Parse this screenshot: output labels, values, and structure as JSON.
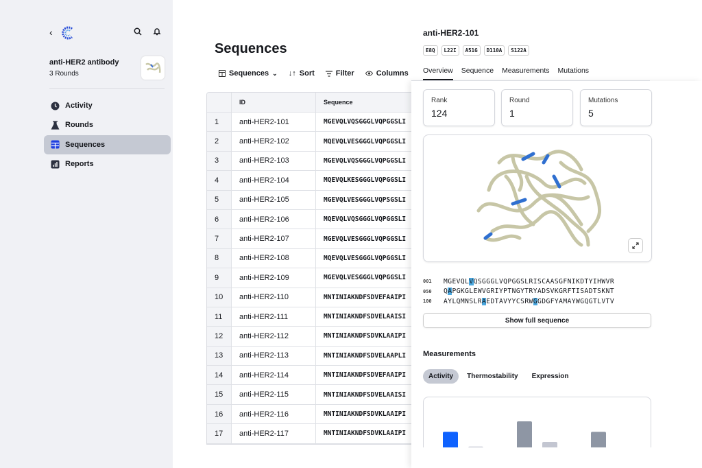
{
  "sidebar": {
    "project_title": "anti-HER2 antibody",
    "project_subtitle": "3 Rounds",
    "items": [
      {
        "label": "Activity",
        "icon": "clock-icon"
      },
      {
        "label": "Rounds",
        "icon": "flask-icon"
      },
      {
        "label": "Sequences",
        "icon": "table-icon",
        "active": true
      },
      {
        "label": "Reports",
        "icon": "bar-chart-icon"
      }
    ]
  },
  "main": {
    "title": "Sequences",
    "toolbar": {
      "view": "Sequences",
      "sort": "Sort",
      "filter": "Filter",
      "columns": "Columns"
    },
    "table": {
      "headers": [
        "",
        "ID",
        "Sequence"
      ],
      "rows": [
        [
          "1",
          "anti-HER2-101",
          "MGEVQLVQSGGGLVQPGGSLI"
        ],
        [
          "2",
          "anti-HER2-102",
          "MQEVQLVESGGGLVQPGGSLI"
        ],
        [
          "3",
          "anti-HER2-103",
          "MGEVQLVQSGGGLVQPGGSLI"
        ],
        [
          "4",
          "anti-HER2-104",
          "MQEVQLKESGGGLVQPGGSLI"
        ],
        [
          "5",
          "anti-HER2-105",
          "MGEVQLVESGGGLVQPSGSLI"
        ],
        [
          "6",
          "anti-HER2-106",
          "MQEVQLVQSGGGLVQPGGSLI"
        ],
        [
          "7",
          "anti-HER2-107",
          "MGEVQLVESGGGLVQPGGSLI"
        ],
        [
          "8",
          "anti-HER2-108",
          "MQEVQLVESGGGLVQPGGSLI"
        ],
        [
          "9",
          "anti-HER2-109",
          "MGEVQLVESGGGLVQPGGSLI"
        ],
        [
          "10",
          "anti-HER2-110",
          "MNTINIAKNDFSDVEFAAIPI"
        ],
        [
          "11",
          "anti-HER2-111",
          "MNTINIAKNDFSDVELAAISI"
        ],
        [
          "12",
          "anti-HER2-112",
          "MNTINIAKNDFSDVKLAAIPI"
        ],
        [
          "13",
          "anti-HER2-113",
          "MNTINIAKNDFSDVELAAPLI"
        ],
        [
          "14",
          "anti-HER2-114",
          "MNTINIAKNDFSDVEFAAIPI"
        ],
        [
          "15",
          "anti-HER2-115",
          "MNTINIAKNDFSDVELAAISI"
        ],
        [
          "16",
          "anti-HER2-116",
          "MNTINIAKNDFSDVKLAAIPI"
        ],
        [
          "17",
          "anti-HER2-117",
          "MNTINIAKNDFSDVKLAAIPI"
        ]
      ]
    }
  },
  "panel": {
    "title": "anti-HER2-101",
    "tags": [
      "E8Q",
      "L22I",
      "A51G",
      "D110A",
      "S122A"
    ],
    "tabs": [
      "Overview",
      "Sequence",
      "Measurements",
      "Mutations"
    ],
    "stats": [
      {
        "label": "Rank",
        "value": "124"
      },
      {
        "label": "Round",
        "value": "1"
      },
      {
        "label": "Mutations",
        "value": "5"
      }
    ],
    "sequence": [
      {
        "num": "001",
        "parts": [
          [
            "MGEVQL",
            false
          ],
          [
            "V",
            true
          ],
          [
            "QSGGGLVQPGGSLRISCAASGFNIKDTYIHWVR",
            false
          ]
        ]
      },
      {
        "num": "050",
        "parts": [
          [
            "Q",
            false
          ],
          [
            "A",
            true
          ],
          [
            "PGKGLEWVGRIYPTNGYTRYADSVKGRFTISADTSKNT",
            false
          ]
        ]
      },
      {
        "num": "100",
        "parts": [
          [
            "AYLQMNSLR",
            false
          ],
          [
            "A",
            true
          ],
          [
            "EDTAVYYCSRW",
            false
          ],
          [
            "G",
            true
          ],
          [
            "GDGFYAMAYWGQGTLVTV",
            false
          ]
        ]
      }
    ],
    "show_full": "Show full sequence",
    "measurements_title": "Measurements",
    "measurement_tabs": [
      "Activity",
      "Thermostability",
      "Expression"
    ],
    "chart_bars": [
      {
        "value": 0.62,
        "color": "#0f62fe"
      },
      {
        "value": 0.08,
        "color": "#c3c6d1"
      },
      {
        "value": 1.0,
        "color": "#8e96a4"
      },
      {
        "value": 0.25,
        "color": "#c3c6d1"
      },
      {
        "value": 0.62,
        "color": "#8e96a4"
      }
    ],
    "highlight_color": "#4aa8e0"
  }
}
